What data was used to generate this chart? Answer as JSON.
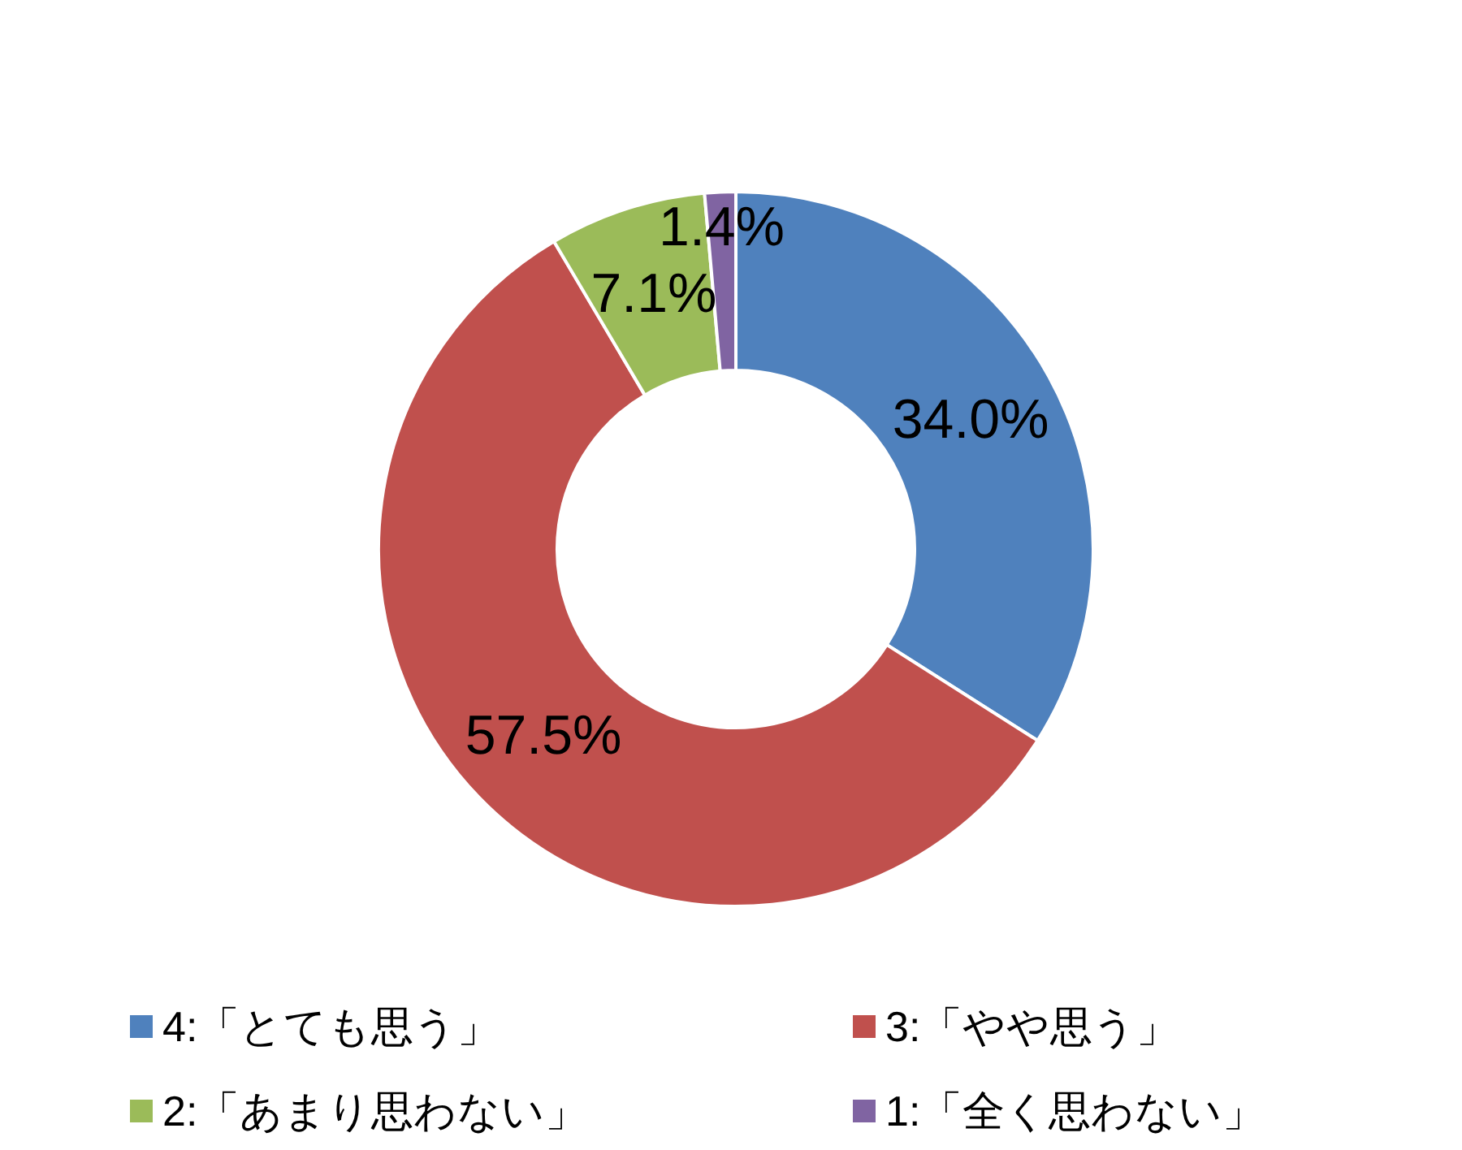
{
  "chart_data": {
    "type": "donut",
    "categories": [
      "4:「とても思う」",
      "3:「やや思う」",
      "2:「あまり思わない」",
      "1:「全く思わない」"
    ],
    "values": [
      34.0,
      57.5,
      7.1,
      1.4
    ],
    "colors": [
      "#4f81bd",
      "#c0504d",
      "#9bbb59",
      "#8064a2"
    ],
    "value_labels": [
      "34.0%",
      "57.5%",
      "7.1%",
      "1.4%"
    ],
    "legend": "bottom"
  }
}
